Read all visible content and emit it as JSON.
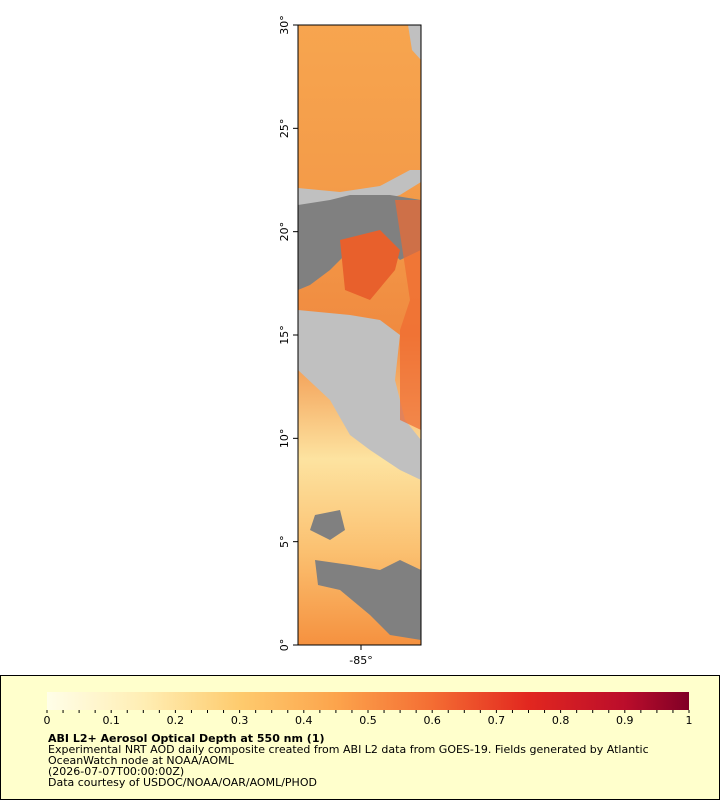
{
  "map": {
    "y_axis_labels": [
      "0°",
      "5°",
      "10°",
      "15°",
      "20°",
      "25°",
      "30°"
    ],
    "x_axis_labels": [
      "-85°"
    ]
  },
  "colorbar": {
    "tick_labels": [
      "0",
      "0.1",
      "0.2",
      "0.3",
      "0.4",
      "0.5",
      "0.6",
      "0.7",
      "0.8",
      "0.9",
      "1"
    ]
  },
  "caption": {
    "title": "ABI L2+ Aerosol Optical Depth at 550 nm (1)",
    "lines": [
      "Experimental NRT AOD daily composite created from ABI L2 data from GOES-19. Fields generated by Atlantic",
      "OceanWatch node at NOAA/AOML",
      "(2026-07-07T00:00:00Z)",
      "Data courtesy of USDOC/NOAA/OAR/AOML/PHOD"
    ]
  }
}
